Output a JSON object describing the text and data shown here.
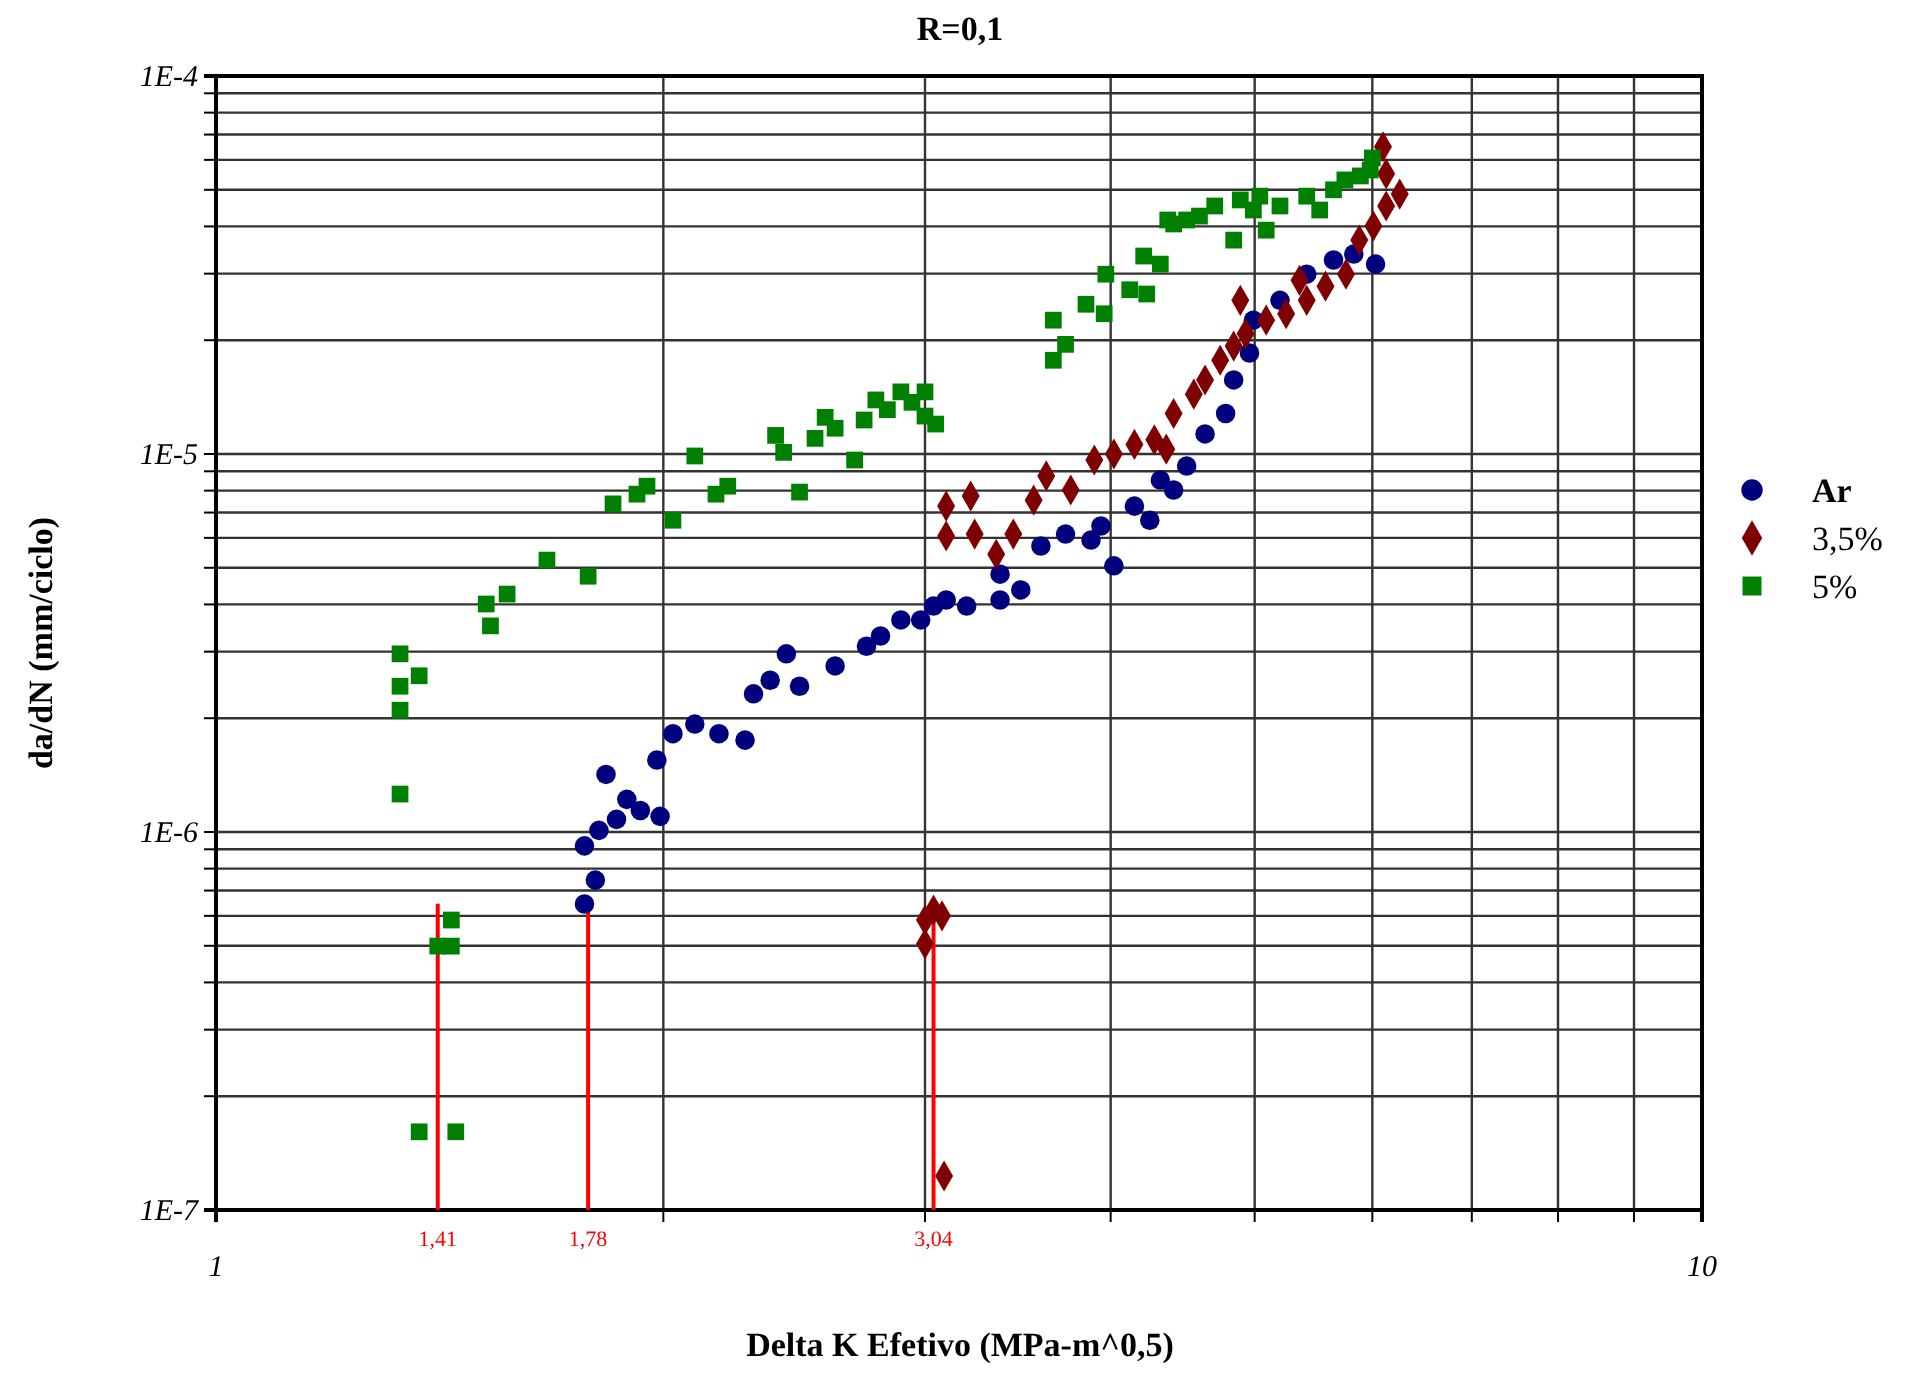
{
  "chart_data": {
    "type": "scatter",
    "title": "R=0,1",
    "xlabel": "Delta K Efetivo (MPa-m^0,5)",
    "ylabel": "da/dN (mm/ciclo)",
    "log": "xy",
    "grid": true,
    "legend": "right",
    "xlim": [
      1,
      10
    ],
    "ylim": [
      1e-07,
      0.0001
    ],
    "xticks": [
      {
        "value": 1,
        "label": "1"
      },
      {
        "value": 2,
        "label": null
      },
      {
        "value": 3,
        "label": null
      },
      {
        "value": 4,
        "label": null
      },
      {
        "value": 5,
        "label": null
      },
      {
        "value": 6,
        "label": null
      },
      {
        "value": 7,
        "label": null
      },
      {
        "value": 8,
        "label": null
      },
      {
        "value": 9,
        "label": null
      },
      {
        "value": 10,
        "label": "10"
      }
    ],
    "yticks": [
      {
        "value": 1e-07,
        "label": "1E-7"
      },
      {
        "value": 2e-07,
        "label": null
      },
      {
        "value": 3e-07,
        "label": null
      },
      {
        "value": 4e-07,
        "label": null
      },
      {
        "value": 5e-07,
        "label": null
      },
      {
        "value": 6e-07,
        "label": null
      },
      {
        "value": 7e-07,
        "label": null
      },
      {
        "value": 8e-07,
        "label": null
      },
      {
        "value": 9e-07,
        "label": null
      },
      {
        "value": 1e-06,
        "label": "1E-6"
      },
      {
        "value": 2e-06,
        "label": null
      },
      {
        "value": 3e-06,
        "label": null
      },
      {
        "value": 4e-06,
        "label": null
      },
      {
        "value": 5e-06,
        "label": null
      },
      {
        "value": 6e-06,
        "label": null
      },
      {
        "value": 7e-06,
        "label": null
      },
      {
        "value": 8e-06,
        "label": null
      },
      {
        "value": 9e-06,
        "label": null
      },
      {
        "value": 1e-05,
        "label": "1E-5"
      },
      {
        "value": 2e-05,
        "label": null
      },
      {
        "value": 3e-05,
        "label": null
      },
      {
        "value": 4e-05,
        "label": null
      },
      {
        "value": 5e-05,
        "label": null
      },
      {
        "value": 6e-05,
        "label": null
      },
      {
        "value": 7e-05,
        "label": null
      },
      {
        "value": 8e-05,
        "label": null
      },
      {
        "value": 9e-05,
        "label": null
      },
      {
        "value": 0.0001,
        "label": "1E-4"
      }
    ],
    "ref_lines": [
      {
        "axis": "x",
        "value": 1.41,
        "label": "1,41",
        "color": "#ff0000"
      },
      {
        "axis": "x",
        "value": 1.78,
        "label": "1,78",
        "color": "#ff0000"
      },
      {
        "axis": "x",
        "value": 3.04,
        "label": "3,04",
        "color": "#ff0000"
      }
    ],
    "series": [
      {
        "name": "Ar",
        "color": "#00007f",
        "marker": "circle",
        "x": [
          1.77,
          1.8,
          1.77,
          1.83,
          1.81,
          1.86,
          1.89,
          1.93,
          1.99,
          1.98,
          2.03,
          2.1,
          2.18,
          2.27,
          2.3,
          2.36,
          2.42,
          2.47,
          2.61,
          2.74,
          2.8,
          2.89,
          2.98,
          3.04,
          3.1,
          3.2,
          3.37,
          3.37,
          3.48,
          3.59,
          3.73,
          3.88,
          3.94,
          4.02,
          4.15,
          4.25,
          4.32,
          4.41,
          4.5,
          4.63,
          4.78,
          4.84,
          4.96,
          4.99,
          5.2,
          5.42,
          5.65,
          5.83,
          6.03
        ],
        "values": [
          6.45e-07,
          7.46e-07,
          9.19e-07,
          1.42e-06,
          1.01e-06,
          1.08e-06,
          1.22e-06,
          1.14e-06,
          1.1e-06,
          1.55e-06,
          1.82e-06,
          1.93e-06,
          1.82e-06,
          1.75e-06,
          2.32e-06,
          2.52e-06,
          2.96e-06,
          2.43e-06,
          2.75e-06,
          3.1e-06,
          3.3e-06,
          3.64e-06,
          3.64e-06,
          3.96e-06,
          4.11e-06,
          3.96e-06,
          4.11e-06,
          4.81e-06,
          4.37e-06,
          5.71e-06,
          6.14e-06,
          5.92e-06,
          6.45e-06,
          5.06e-06,
          7.28e-06,
          6.68e-06,
          8.53e-06,
          8.03e-06,
          9.29e-06,
          1.13e-05,
          1.28e-05,
          1.57e-05,
          1.85e-05,
          2.26e-05,
          2.55e-05,
          2.99e-05,
          3.26e-05,
          3.38e-05,
          3.18e-05
        ]
      },
      {
        "name": "3,5%",
        "color": "#7f0000",
        "marker": "diamond",
        "x": [
          3.0,
          3.04,
          3.08,
          3.0,
          3.09,
          3.1,
          3.22,
          3.1,
          3.24,
          3.35,
          3.44,
          3.55,
          3.62,
          3.76,
          3.9,
          4.02,
          4.15,
          4.28,
          4.36,
          4.41,
          4.55,
          4.63,
          4.74,
          4.84,
          4.89,
          4.93,
          5.09,
          5.25,
          5.36,
          5.42,
          5.58,
          5.76,
          5.88,
          6.01,
          6.13,
          6.26,
          6.13,
          6.1
        ],
        "values": [
          5.85e-07,
          6.22e-07,
          6e-07,
          5.06e-07,
          1.23e-07,
          7.28e-06,
          7.74e-06,
          6.07e-06,
          6.14e-06,
          5.43e-06,
          6.14e-06,
          7.55e-06,
          8.75e-06,
          8.03e-06,
          9.64e-06,
          1e-05,
          1.06e-05,
          1.09e-05,
          1.03e-05,
          1.28e-05,
          1.44e-05,
          1.57e-05,
          1.77e-05,
          1.93e-05,
          2.55e-05,
          2.08e-05,
          2.26e-05,
          2.35e-05,
          2.88e-05,
          2.55e-05,
          2.78e-05,
          2.99e-05,
          3.68e-05,
          4.01e-05,
          4.53e-05,
          4.87e-05,
          5.51e-05,
          6.5e-05
        ]
      },
      {
        "name": "5%",
        "color": "#008000",
        "marker": "square",
        "x": [
          1.33,
          1.33,
          1.33,
          1.37,
          1.33,
          1.44,
          1.41,
          1.44,
          1.37,
          1.45,
          1.52,
          1.53,
          1.57,
          1.67,
          1.78,
          1.85,
          1.92,
          1.95,
          2.03,
          2.1,
          2.17,
          2.21,
          2.47,
          2.38,
          2.41,
          2.53,
          2.57,
          2.61,
          2.69,
          2.73,
          2.78,
          2.83,
          2.89,
          2.94,
          3.0,
          3.0,
          3.05,
          3.66,
          3.66,
          3.73,
          3.85,
          3.96,
          3.97,
          4.12,
          4.23,
          4.21,
          4.32,
          4.37,
          4.41,
          4.5,
          4.59,
          4.7,
          4.84,
          4.89,
          4.99,
          5.04,
          5.09,
          5.2,
          5.42,
          5.53,
          5.65,
          5.75,
          5.89,
          5.98,
          6.0
        ],
        "values": [
          2.96e-06,
          2.43e-06,
          2.1e-06,
          2.59e-06,
          1.26e-06,
          5.85e-07,
          4.99e-07,
          4.99e-07,
          1.61e-07,
          1.61e-07,
          4.01e-06,
          3.51e-06,
          4.26e-06,
          5.24e-06,
          4.75e-06,
          7.38e-06,
          7.83e-06,
          8.22e-06,
          6.68e-06,
          9.88e-06,
          7.83e-06,
          8.22e-06,
          7.93e-06,
          1.12e-05,
          1.01e-05,
          1.1e-05,
          1.25e-05,
          1.17e-05,
          9.64e-06,
          1.23e-05,
          1.39e-05,
          1.31e-05,
          1.46e-05,
          1.37e-05,
          1.46e-05,
          1.26e-05,
          1.2e-05,
          2.26e-05,
          1.77e-05,
          1.95e-05,
          2.49e-05,
          2.35e-05,
          2.99e-05,
          2.72e-05,
          2.65e-05,
          3.34e-05,
          3.18e-05,
          4.16e-05,
          4.06e-05,
          4.16e-05,
          4.26e-05,
          4.53e-05,
          3.68e-05,
          4.7e-05,
          4.42e-05,
          4.81e-05,
          3.91e-05,
          4.53e-05,
          4.81e-05,
          4.42e-05,
          5e-05,
          5.31e-05,
          5.44e-05,
          5.64e-05,
          6.07e-05
        ]
      }
    ]
  }
}
